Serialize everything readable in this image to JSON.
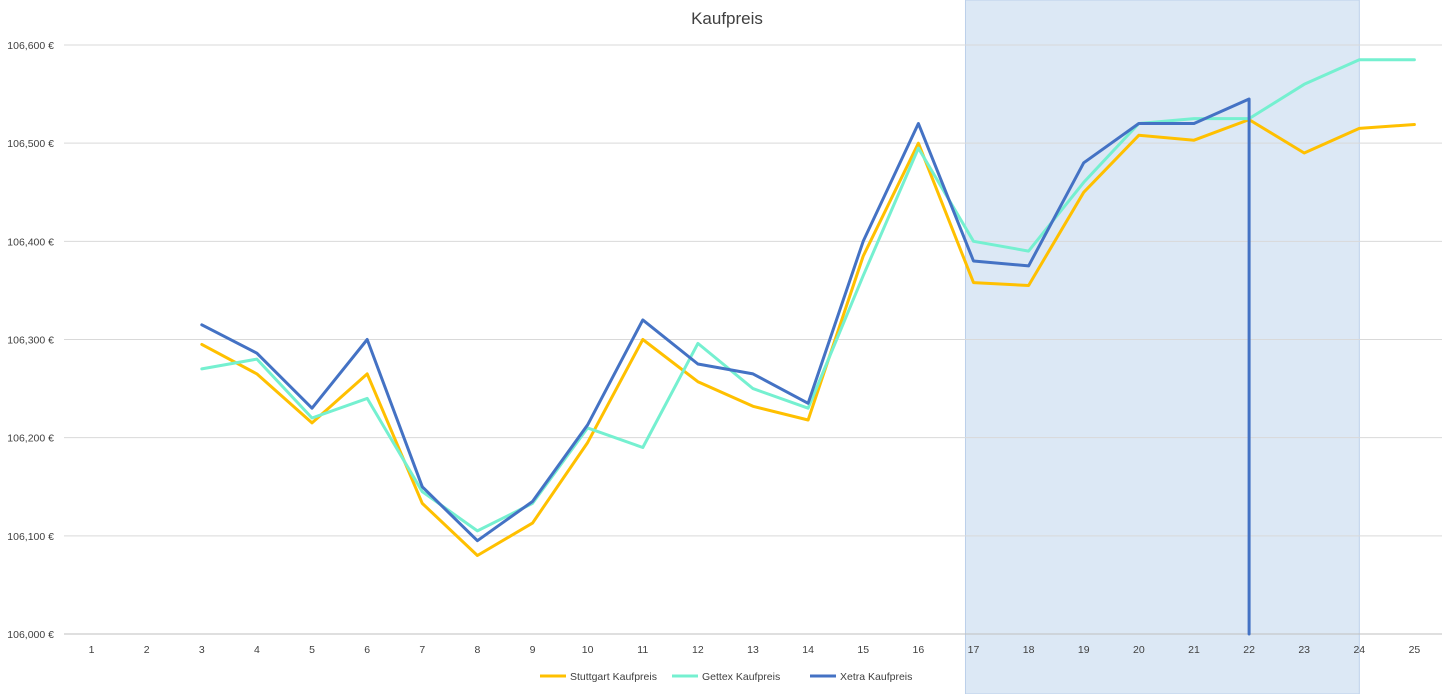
{
  "chart_data": {
    "type": "line",
    "title": "Kaufpreis",
    "xlabel": "",
    "ylabel": "",
    "categories": [
      "1",
      "2",
      "3",
      "4",
      "5",
      "6",
      "7",
      "8",
      "9",
      "10",
      "11",
      "12",
      "13",
      "14",
      "15",
      "16",
      "17",
      "18",
      "19",
      "20",
      "21",
      "22",
      "23",
      "24",
      "25"
    ],
    "y_ticks": [
      106000,
      106100,
      106200,
      106300,
      106400,
      106500,
      106600
    ],
    "y_tick_labels": [
      "106,000 €",
      "106,100 €",
      "106,200 €",
      "106,300 €",
      "106,400 €",
      "106,500 €",
      "106,600 €"
    ],
    "ylim": [
      106000,
      106600
    ],
    "grid": true,
    "legend_position": "bottom",
    "highlight_range": {
      "from": "17",
      "to": "24",
      "color": "#dce8f5"
    },
    "series": [
      {
        "name": "Stuttgart Kaufpreis",
        "color": "#ffc000",
        "values": [
          null,
          null,
          106295,
          106265,
          106215,
          106265,
          106133,
          106080,
          106113,
          106195,
          106300,
          106257,
          106232,
          106218,
          106385,
          106500,
          106358,
          106355,
          106450,
          106508,
          106503,
          106524,
          106490,
          106515,
          106519
        ]
      },
      {
        "name": "Gettex Kaufpreis",
        "color": "#75f0d0",
        "values": [
          null,
          null,
          106270,
          106280,
          106220,
          106240,
          106145,
          106105,
          106133,
          106210,
          106190,
          106296,
          106250,
          106230,
          106365,
          106495,
          106400,
          106390,
          106460,
          106520,
          106525,
          106525,
          106560,
          106585,
          106585
        ]
      },
      {
        "name": "Xetra Kaufpreis",
        "color": "#4472c4",
        "values": [
          null,
          null,
          106315,
          106286,
          106230,
          106300,
          106150,
          106095,
          106135,
          106213,
          106320,
          106275,
          106265,
          106235,
          106400,
          106520,
          106380,
          106375,
          106480,
          106520,
          106520,
          106545,
          null,
          null,
          null
        ],
        "drop_after_last": 106000
      }
    ]
  }
}
